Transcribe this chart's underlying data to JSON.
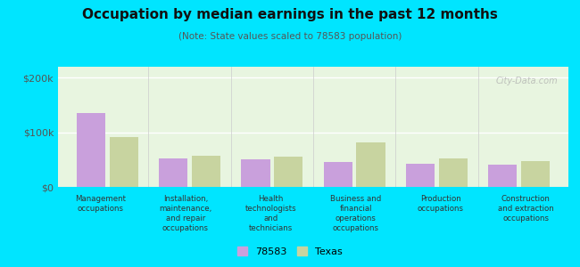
{
  "title": "Occupation by median earnings in the past 12 months",
  "subtitle": "(Note: State values scaled to 78583 population)",
  "categories": [
    "Management\noccupations",
    "Installation,\nmaintenance,\nand repair\noccupations",
    "Health\ntechnologists\nand\ntechnicians",
    "Business and\nfinancial\noperations\noccupations",
    "Production\noccupations",
    "Construction\nand extraction\noccupations"
  ],
  "values_78583": [
    135000,
    52000,
    51000,
    45000,
    42000,
    40000
  ],
  "values_texas": [
    92000,
    57000,
    55000,
    82000,
    52000,
    48000
  ],
  "color_78583": "#c9a0dc",
  "color_texas": "#c8d4a0",
  "ylim": [
    0,
    220000
  ],
  "yticks": [
    0,
    100000,
    200000
  ],
  "ytick_labels": [
    "$0",
    "$100k",
    "$200k"
  ],
  "background_color": "#e8f5e0",
  "outer_background": "#00e5ff",
  "legend_label_78583": "78583",
  "legend_label_texas": "Texas",
  "watermark": "City-Data.com"
}
